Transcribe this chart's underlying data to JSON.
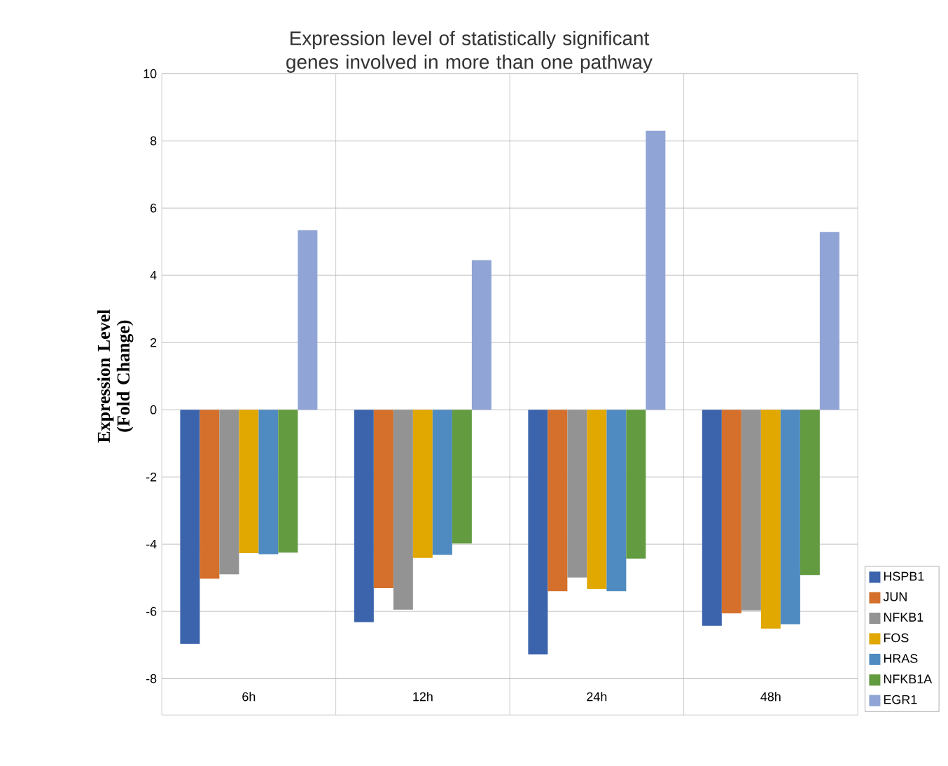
{
  "chart_data": {
    "type": "bar",
    "title": "Expression level of statistically significant genes involved in more than one pathway",
    "ylabel": "Expression Level (Fold Change)",
    "categories": [
      "6h",
      "12h",
      "24h",
      "48h"
    ],
    "series": [
      {
        "name": "HSPB1",
        "color": "#3b64ad",
        "values": [
          -6.97,
          -6.32,
          -7.28,
          -6.43
        ]
      },
      {
        "name": "JUN",
        "color": "#d4702b",
        "values": [
          -5.03,
          -5.31,
          -5.4,
          -6.06
        ]
      },
      {
        "name": "NFKB1",
        "color": "#939393",
        "values": [
          -4.9,
          -5.95,
          -4.99,
          -5.97
        ]
      },
      {
        "name": "FOS",
        "color": "#e0a800",
        "values": [
          -4.27,
          -4.41,
          -5.33,
          -6.51
        ]
      },
      {
        "name": "HRAS",
        "color": "#4f8bc0",
        "values": [
          -4.3,
          -4.32,
          -5.4,
          -6.38
        ]
      },
      {
        "name": "NFKB1A",
        "color": "#629b40",
        "values": [
          -4.25,
          -3.98,
          -4.43,
          -4.92
        ]
      },
      {
        "name": "EGR1",
        "color": "#90a5d5",
        "values": [
          5.34,
          4.45,
          8.3,
          5.29
        ]
      }
    ],
    "ylim": [
      -8,
      10
    ],
    "yticks": [
      -8,
      -6,
      -4,
      -2,
      0,
      2,
      4,
      6,
      8,
      10
    ],
    "grid": true,
    "legend": "bottom right"
  }
}
